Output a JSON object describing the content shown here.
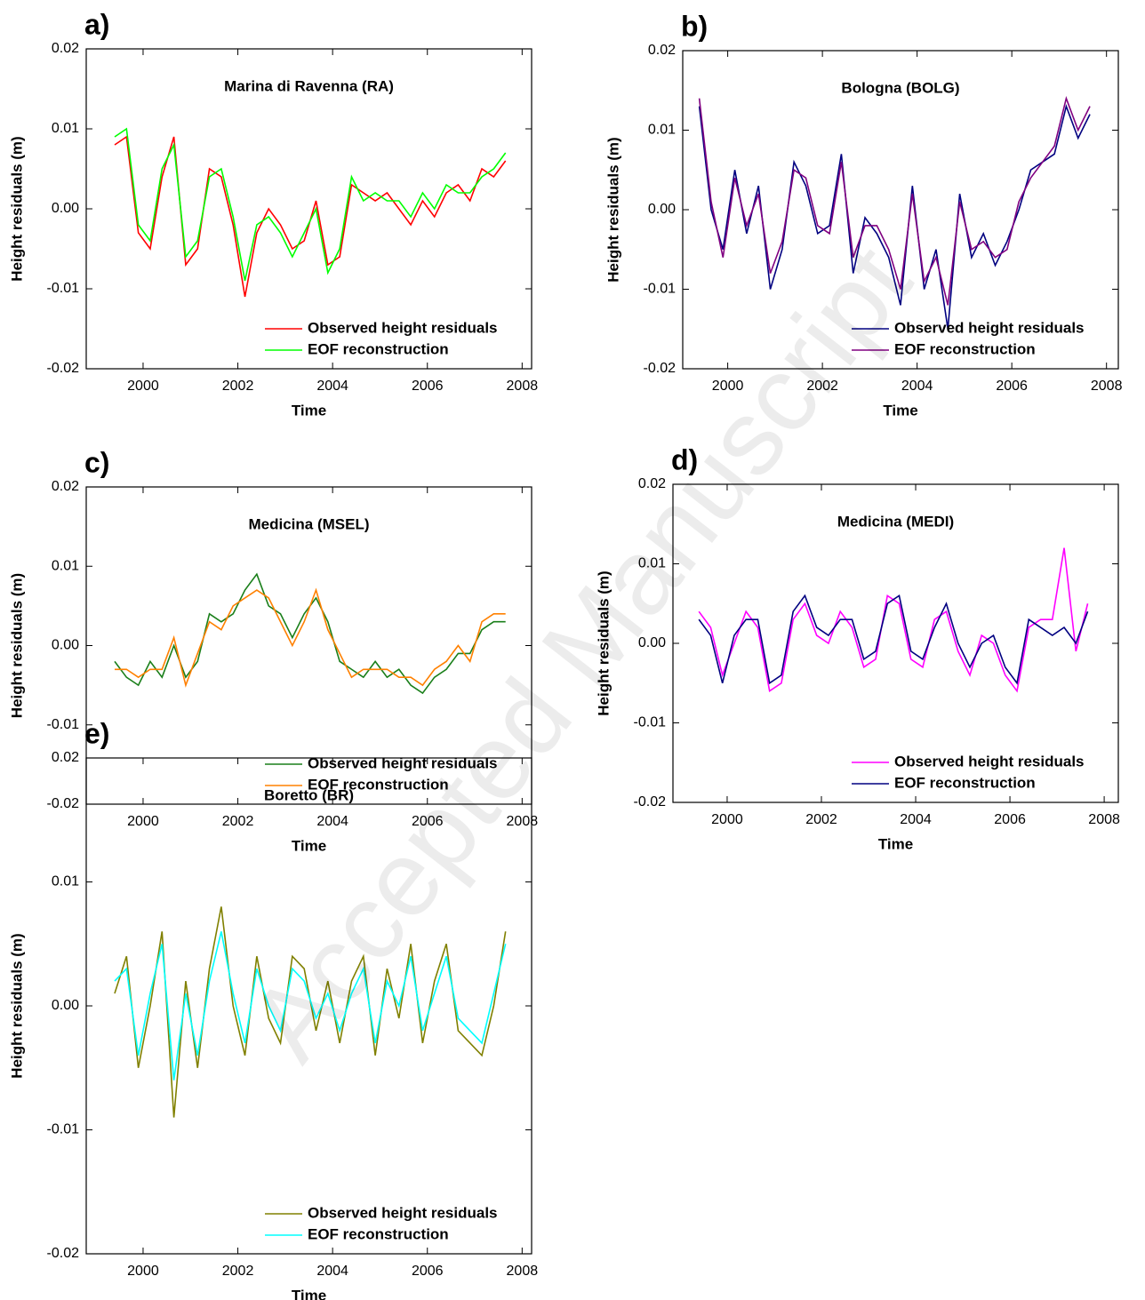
{
  "watermark": "Accepted Manuscript",
  "chart_data": [
    {
      "type": "line",
      "panel_label": "a)",
      "title": "Marina di Ravenna (RA)",
      "x_label": "Time",
      "y_label": "Height residuals (m)",
      "xlim": [
        1998.8,
        2008.2
      ],
      "xticks": [
        2000,
        2002,
        2004,
        2006,
        2008
      ],
      "ylim": [
        -0.02,
        0.02
      ],
      "yticks": [
        -0.02,
        -0.01,
        {
          "value": 0,
          "label": "0.00"
        },
        0.01,
        0.02
      ],
      "grid": false,
      "legend": "lower right",
      "x": [
        1999.4,
        1999.65,
        1999.9,
        2000.15,
        2000.4,
        2000.65,
        2000.9,
        2001.15,
        2001.4,
        2001.65,
        2001.9,
        2002.15,
        2002.4,
        2002.65,
        2002.9,
        2003.15,
        2003.4,
        2003.65,
        2003.9,
        2004.15,
        2004.4,
        2004.65,
        2004.9,
        2005.15,
        2005.4,
        2005.65,
        2005.9,
        2006.15,
        2006.4,
        2006.65,
        2006.9,
        2007.15,
        2007.4,
        2007.65
      ],
      "series": [
        {
          "name": "Observed height residuals",
          "color": "#ff0000",
          "values": [
            0.008,
            0.009,
            -0.003,
            -0.005,
            0.004,
            0.009,
            -0.007,
            -0.005,
            0.005,
            0.004,
            -0.002,
            -0.011,
            -0.003,
            0.0,
            -0.002,
            -0.005,
            -0.004,
            0.001,
            -0.007,
            -0.006,
            0.003,
            0.002,
            0.001,
            0.002,
            0.0,
            -0.002,
            0.001,
            -0.001,
            0.002,
            0.003,
            0.001,
            0.005,
            0.004,
            0.006
          ]
        },
        {
          "name": "EOF reconstruction",
          "color": "#00ff00",
          "values": [
            0.009,
            0.01,
            -0.002,
            -0.004,
            0.005,
            0.008,
            -0.006,
            -0.004,
            0.004,
            0.005,
            -0.001,
            -0.009,
            -0.002,
            -0.001,
            -0.003,
            -0.006,
            -0.003,
            0.0,
            -0.008,
            -0.005,
            0.004,
            0.001,
            0.002,
            0.001,
            0.001,
            -0.001,
            0.002,
            0.0,
            0.003,
            0.002,
            0.002,
            0.004,
            0.005,
            0.007
          ]
        }
      ]
    },
    {
      "type": "line",
      "panel_label": "b)",
      "title": "Bologna (BOLG)",
      "x_label": "Time",
      "y_label": "Height residuals (m)",
      "xlim": [
        1999.05,
        2008.25
      ],
      "xticks": [
        2000,
        2002,
        2004,
        2006,
        2008
      ],
      "ylim": [
        -0.02,
        0.02
      ],
      "yticks": [
        -0.02,
        -0.01,
        {
          "value": 0,
          "label": "0.00"
        },
        0.01,
        0.02
      ],
      "grid": false,
      "legend": "lower right",
      "x": [
        1999.4,
        1999.65,
        1999.9,
        2000.15,
        2000.4,
        2000.65,
        2000.9,
        2001.15,
        2001.4,
        2001.65,
        2001.9,
        2002.15,
        2002.4,
        2002.65,
        2002.9,
        2003.15,
        2003.4,
        2003.65,
        2003.9,
        2004.15,
        2004.4,
        2004.65,
        2004.9,
        2005.15,
        2005.4,
        2005.65,
        2005.9,
        2006.15,
        2006.4,
        2006.65,
        2006.9,
        2007.15,
        2007.4,
        2007.65
      ],
      "series": [
        {
          "name": "Observed height residuals",
          "color": "#000080",
          "values": [
            0.013,
            0.0,
            -0.005,
            0.005,
            -0.003,
            0.003,
            -0.01,
            -0.005,
            0.006,
            0.003,
            -0.003,
            -0.002,
            0.007,
            -0.008,
            -0.001,
            -0.003,
            -0.006,
            -0.012,
            0.003,
            -0.01,
            -0.005,
            -0.015,
            0.002,
            -0.006,
            -0.003,
            -0.007,
            -0.004,
            0.0,
            0.005,
            0.006,
            0.007,
            0.013,
            0.009,
            0.012
          ]
        },
        {
          "name": "EOF reconstruction",
          "color": "#800080",
          "values": [
            0.014,
            0.001,
            -0.006,
            0.004,
            -0.002,
            0.002,
            -0.008,
            -0.004,
            0.005,
            0.004,
            -0.002,
            -0.003,
            0.006,
            -0.006,
            -0.002,
            -0.002,
            -0.005,
            -0.01,
            0.002,
            -0.009,
            -0.006,
            -0.012,
            0.001,
            -0.005,
            -0.004,
            -0.006,
            -0.005,
            0.001,
            0.004,
            0.006,
            0.008,
            0.014,
            0.01,
            0.013
          ]
        }
      ]
    },
    {
      "type": "line",
      "panel_label": "c)",
      "title": "Medicina (MSEL)",
      "x_label": "Time",
      "y_label": "Height residuals (m)",
      "xlim": [
        1998.8,
        2008.2
      ],
      "xticks": [
        2000,
        2002,
        2004,
        2006,
        2008
      ],
      "ylim": [
        -0.02,
        0.02
      ],
      "yticks": [
        -0.02,
        -0.01,
        {
          "value": 0,
          "label": "0.00"
        },
        0.01,
        0.02
      ],
      "grid": false,
      "legend": "lower right",
      "x": [
        1999.4,
        1999.65,
        1999.9,
        2000.15,
        2000.4,
        2000.65,
        2000.9,
        2001.15,
        2001.4,
        2001.65,
        2001.9,
        2002.15,
        2002.4,
        2002.65,
        2002.9,
        2003.15,
        2003.4,
        2003.65,
        2003.9,
        2004.15,
        2004.4,
        2004.65,
        2004.9,
        2005.15,
        2005.4,
        2005.65,
        2005.9,
        2006.15,
        2006.4,
        2006.65,
        2006.9,
        2007.15,
        2007.4,
        2007.65
      ],
      "series": [
        {
          "name": "Observed height residuals",
          "color": "#1a7f1a",
          "values": [
            -0.002,
            -0.004,
            -0.005,
            -0.002,
            -0.004,
            0.0,
            -0.004,
            -0.002,
            0.004,
            0.003,
            0.004,
            0.007,
            0.009,
            0.005,
            0.004,
            0.001,
            0.004,
            0.006,
            0.003,
            -0.002,
            -0.003,
            -0.004,
            -0.002,
            -0.004,
            -0.003,
            -0.005,
            -0.006,
            -0.004,
            -0.003,
            -0.001,
            -0.001,
            0.002,
            0.003,
            0.003
          ]
        },
        {
          "name": "EOF reconstruction",
          "color": "#ff8000",
          "values": [
            -0.003,
            -0.003,
            -0.004,
            -0.003,
            -0.003,
            0.001,
            -0.005,
            -0.001,
            0.003,
            0.002,
            0.005,
            0.006,
            0.007,
            0.006,
            0.003,
            0.0,
            0.003,
            0.007,
            0.002,
            -0.001,
            -0.004,
            -0.003,
            -0.003,
            -0.003,
            -0.004,
            -0.004,
            -0.005,
            -0.003,
            -0.002,
            0.0,
            -0.002,
            0.003,
            0.004,
            0.004
          ]
        }
      ]
    },
    {
      "type": "line",
      "panel_label": "d)",
      "title": "Medicina (MEDI)",
      "x_label": "Time",
      "y_label": "Height residuals (m)",
      "xlim": [
        1998.85,
        2008.3
      ],
      "xticks": [
        2000,
        2002,
        2004,
        2006,
        2008
      ],
      "ylim": [
        -0.02,
        0.02
      ],
      "yticks": [
        -0.02,
        -0.01,
        {
          "value": 0,
          "label": "0.00"
        },
        0.01,
        0.02
      ],
      "grid": false,
      "legend": "lower right",
      "x": [
        1999.4,
        1999.65,
        1999.9,
        2000.15,
        2000.4,
        2000.65,
        2000.9,
        2001.15,
        2001.4,
        2001.65,
        2001.9,
        2002.15,
        2002.4,
        2002.65,
        2002.9,
        2003.15,
        2003.4,
        2003.65,
        2003.9,
        2004.15,
        2004.4,
        2004.65,
        2004.9,
        2005.15,
        2005.4,
        2005.65,
        2005.9,
        2006.15,
        2006.4,
        2006.65,
        2006.9,
        2007.15,
        2007.4,
        2007.65
      ],
      "series": [
        {
          "name": "Observed height residuals",
          "color": "#ff00ff",
          "values": [
            0.004,
            0.002,
            -0.004,
            0.0,
            0.004,
            0.002,
            -0.006,
            -0.005,
            0.003,
            0.005,
            0.001,
            0.0,
            0.004,
            0.002,
            -0.003,
            -0.002,
            0.006,
            0.005,
            -0.002,
            -0.003,
            0.003,
            0.004,
            -0.001,
            -0.004,
            0.001,
            0.0,
            -0.004,
            -0.006,
            0.002,
            0.003,
            0.003,
            0.012,
            -0.001,
            0.005
          ]
        },
        {
          "name": "EOF reconstruction",
          "color": "#000080",
          "values": [
            0.003,
            0.001,
            -0.005,
            0.001,
            0.003,
            0.003,
            -0.005,
            -0.004,
            0.004,
            0.006,
            0.002,
            0.001,
            0.003,
            0.003,
            -0.002,
            -0.001,
            0.005,
            0.006,
            -0.001,
            -0.002,
            0.002,
            0.005,
            0.0,
            -0.003,
            0.0,
            0.001,
            -0.003,
            -0.005,
            0.003,
            0.002,
            0.001,
            0.002,
            0.0,
            0.004
          ]
        }
      ]
    },
    {
      "type": "line",
      "panel_label": "e)",
      "title": "Boretto (BR)",
      "x_label": "Time",
      "y_label": "Height residuals (m)",
      "xlim": [
        1998.8,
        2008.2
      ],
      "xticks": [
        2000,
        2002,
        2004,
        2006,
        2008
      ],
      "ylim": [
        -0.02,
        0.02
      ],
      "yticks": [
        -0.02,
        -0.01,
        {
          "value": 0,
          "label": "0.00"
        },
        0.01,
        0.02
      ],
      "grid": false,
      "legend": "lower right",
      "x": [
        1999.4,
        1999.65,
        1999.9,
        2000.15,
        2000.4,
        2000.65,
        2000.9,
        2001.15,
        2001.4,
        2001.65,
        2001.9,
        2002.15,
        2002.4,
        2002.65,
        2002.9,
        2003.15,
        2003.4,
        2003.65,
        2003.9,
        2004.15,
        2004.4,
        2004.65,
        2004.9,
        2005.15,
        2005.4,
        2005.65,
        2005.9,
        2006.15,
        2006.4,
        2006.65,
        2006.9,
        2007.15,
        2007.4,
        2007.65
      ],
      "series": [
        {
          "name": "Observed height residuals",
          "color": "#808000",
          "values": [
            0.001,
            0.004,
            -0.005,
            0.0,
            0.006,
            -0.009,
            0.002,
            -0.005,
            0.003,
            0.008,
            0.0,
            -0.004,
            0.004,
            -0.001,
            -0.003,
            0.004,
            0.003,
            -0.002,
            0.002,
            -0.003,
            0.002,
            0.004,
            -0.004,
            0.003,
            -0.001,
            0.005,
            -0.003,
            0.002,
            0.005,
            -0.002,
            -0.003,
            -0.004,
            0.0,
            0.006
          ]
        },
        {
          "name": "EOF reconstruction",
          "color": "#00ffff",
          "values": [
            0.002,
            0.003,
            -0.004,
            0.001,
            0.005,
            -0.006,
            0.001,
            -0.004,
            0.002,
            0.006,
            0.001,
            -0.003,
            0.003,
            0.0,
            -0.002,
            0.003,
            0.002,
            -0.001,
            0.001,
            -0.002,
            0.001,
            0.003,
            -0.003,
            0.002,
            0.0,
            0.004,
            -0.002,
            0.001,
            0.004,
            -0.001,
            -0.002,
            -0.003,
            0.001,
            0.005
          ]
        }
      ]
    }
  ]
}
